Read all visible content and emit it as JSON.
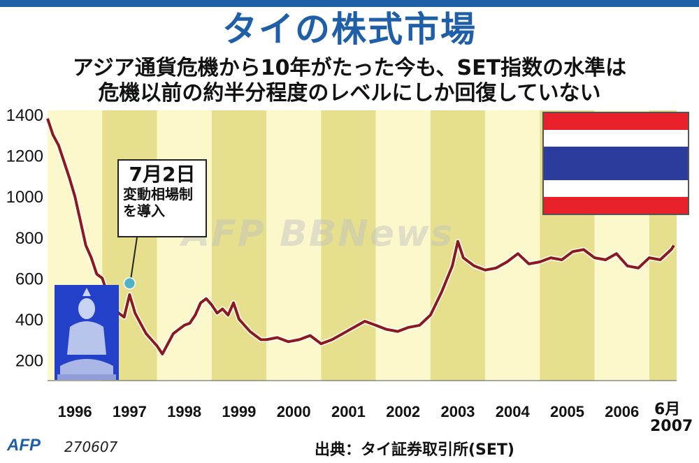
{
  "header": {
    "title": "タイの株式市場",
    "subtitle_line1": "アジア通貨危機から10年がたった今も、SET指数の水準は",
    "subtitle_line2": "危機以前の約半分程度のレベルにしか回復していない"
  },
  "annotation": {
    "title": "7月2日",
    "line1": "変動相場制",
    "line2": "を導入"
  },
  "footer": {
    "logo": "AFP",
    "code": "270607",
    "source": "出典：タイ証券取引所(SET)"
  },
  "watermark": "AFP BBNews",
  "end_month": "6月",
  "end_year": "2007",
  "colors": {
    "title_blue": "#1f5fa8",
    "line": "#8b1a1a",
    "band_light": "#fbf8cc",
    "band_dark": "#e6e08e",
    "marker": "#4fb3c8",
    "flag_red": "#e8202a",
    "flag_blue": "#2a3c9c"
  },
  "chart_data": {
    "type": "line",
    "title": "タイの株式市場",
    "series": [
      {
        "x": [
          1996.0,
          1996.1,
          1996.2,
          1996.3,
          1996.4,
          1996.5,
          1996.6,
          1996.7,
          1996.8,
          1996.9,
          1997.0,
          1997.1,
          1997.2,
          1997.3,
          1997.4,
          1997.5,
          1997.6,
          1997.7,
          1997.8,
          1997.9,
          1998.0,
          1998.1,
          1998.2,
          1998.3,
          1998.4,
          1998.5,
          1998.6,
          1998.7,
          1998.8,
          1998.9,
          1999.0,
          1999.1,
          1999.2,
          1999.3,
          1999.4,
          1999.5,
          1999.6,
          1999.7,
          1999.8,
          1999.9,
          2000.0,
          2000.2,
          2000.4,
          2000.6,
          2000.8,
          2001.0,
          2001.2,
          2001.4,
          2001.6,
          2001.8,
          2002.0,
          2002.2,
          2002.4,
          2002.6,
          2002.8,
          2003.0,
          2003.2,
          2003.4,
          2003.5,
          2003.6,
          2003.8,
          2004.0,
          2004.2,
          2004.4,
          2004.6,
          2004.8,
          2005.0,
          2005.2,
          2005.4,
          2005.6,
          2005.8,
          2006.0,
          2006.2,
          2006.4,
          2006.6,
          2006.8,
          2007.0,
          2007.2,
          2007.4,
          2007.45
        ],
        "y": [
          1380,
          1300,
          1250,
          1170,
          1090,
          1000,
          880,
          760,
          700,
          620,
          600,
          520,
          470,
          430,
          410,
          520,
          430,
          380,
          330,
          300,
          270,
          230,
          280,
          330,
          350,
          370,
          380,
          420,
          480,
          500,
          470,
          430,
          450,
          420,
          480,
          400,
          370,
          340,
          320,
          300,
          300,
          310,
          290,
          300,
          320,
          280,
          300,
          330,
          360,
          390,
          370,
          350,
          340,
          360,
          370,
          420,
          530,
          660,
          780,
          700,
          660,
          640,
          650,
          680,
          720,
          670,
          680,
          700,
          690,
          730,
          740,
          700,
          690,
          720,
          660,
          650,
          700,
          690,
          740,
          760
        ]
      }
    ],
    "x_ticks": [
      "1996",
      "1997",
      "1998",
      "1999",
      "2000",
      "2001",
      "2002",
      "2003",
      "2004",
      "2005",
      "2006"
    ],
    "y_ticks": [
      "200",
      "400",
      "600",
      "800",
      "1000",
      "1200",
      "1400"
    ],
    "ylim": [
      100,
      1420
    ],
    "xlim": [
      1996.0,
      2007.5
    ],
    "event_marker": {
      "x": 1997.5,
      "y": 575
    },
    "grid": false
  }
}
